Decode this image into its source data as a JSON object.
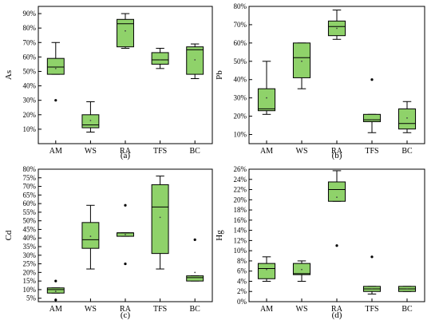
{
  "chart_data": [
    {
      "type": "box",
      "panel_label": "(a)",
      "ylabel": "As",
      "ylim": [
        0,
        95
      ],
      "yticks": [
        10,
        20,
        30,
        40,
        50,
        60,
        70,
        80,
        90
      ],
      "ytick_labels": [
        "10%",
        "20%",
        "30%",
        "40%",
        "50%",
        "60%",
        "70%",
        "80%",
        "90%"
      ],
      "categories": [
        "AM",
        "WS",
        "RA",
        "TFS",
        "BC"
      ],
      "boxes": [
        {
          "whisker_low": 48,
          "q1": 48,
          "median": 53,
          "q3": 59,
          "whisker_high": 70,
          "mean": 52,
          "outliers": [
            30
          ]
        },
        {
          "whisker_low": 8,
          "q1": 11,
          "median": 13,
          "q3": 20,
          "whisker_high": 29,
          "mean": 16,
          "outliers": []
        },
        {
          "whisker_low": 66,
          "q1": 67,
          "median": 83,
          "q3": 86,
          "whisker_high": 90,
          "mean": 78,
          "outliers": []
        },
        {
          "whisker_low": 52,
          "q1": 55,
          "median": 58,
          "q3": 63,
          "whisker_high": 66,
          "mean": 58,
          "outliers": []
        },
        {
          "whisker_low": 45,
          "q1": 48,
          "median": 65,
          "q3": 67,
          "whisker_high": 69,
          "mean": 58,
          "outliers": []
        }
      ]
    },
    {
      "type": "box",
      "panel_label": "(b)",
      "ylabel": "Pb",
      "ylim": [
        5,
        80
      ],
      "yticks": [
        10,
        20,
        30,
        40,
        50,
        60,
        70,
        80
      ],
      "ytick_labels": [
        "10%",
        "20%",
        "30%",
        "40%",
        "50%",
        "60%",
        "70%",
        "80%"
      ],
      "categories": [
        "AM",
        "WS",
        "RA",
        "TFS",
        "BC"
      ],
      "boxes": [
        {
          "whisker_low": 21,
          "q1": 23,
          "median": 24,
          "q3": 35,
          "whisker_high": 50,
          "mean": 30,
          "outliers": []
        },
        {
          "whisker_low": 35,
          "q1": 41,
          "median": 52,
          "q3": 60,
          "whisker_high": 60,
          "mean": 50,
          "outliers": []
        },
        {
          "whisker_low": 62,
          "q1": 64,
          "median": 69,
          "q3": 72,
          "whisker_high": 78,
          "mean": 68,
          "outliers": []
        },
        {
          "whisker_low": 11,
          "q1": 17,
          "median": 18,
          "q3": 21,
          "whisker_high": 21,
          "mean": 18,
          "outliers": [
            40
          ]
        },
        {
          "whisker_low": 11,
          "q1": 13,
          "median": 16,
          "q3": 24,
          "whisker_high": 28,
          "mean": 19,
          "outliers": []
        }
      ]
    },
    {
      "type": "box",
      "panel_label": "(c)",
      "ylabel": "Cd",
      "ylim": [
        3,
        80
      ],
      "yticks": [
        5,
        10,
        15,
        20,
        25,
        30,
        35,
        40,
        45,
        50,
        55,
        60,
        65,
        70,
        75,
        80
      ],
      "ytick_labels": [
        "5%",
        "10%",
        "15%",
        "20%",
        "25%",
        "30%",
        "35%",
        "40%",
        "45%",
        "50%",
        "55%",
        "60%",
        "65%",
        "70%",
        "75%",
        "80%"
      ],
      "categories": [
        "AM",
        "WS",
        "RA",
        "TFS",
        "BC"
      ],
      "boxes": [
        {
          "whisker_low": 8,
          "q1": 8,
          "median": 10,
          "q3": 11,
          "whisker_high": 11,
          "mean": 9,
          "outliers": [
            4,
            15
          ]
        },
        {
          "whisker_low": 22,
          "q1": 34,
          "median": 39,
          "q3": 49,
          "whisker_high": 59,
          "mean": 41,
          "outliers": []
        },
        {
          "whisker_low": 41,
          "q1": 41,
          "median": 43,
          "q3": 43,
          "whisker_high": 43,
          "mean": 42,
          "outliers": [
            25,
            59
          ]
        },
        {
          "whisker_low": 22,
          "q1": 31,
          "median": 58,
          "q3": 71,
          "whisker_high": 76,
          "mean": 52,
          "outliers": []
        },
        {
          "whisker_low": 15,
          "q1": 15,
          "median": 17,
          "q3": 18,
          "whisker_high": 18,
          "mean": 20,
          "outliers": [
            39
          ]
        }
      ]
    },
    {
      "type": "box",
      "panel_label": "(d)",
      "ylabel": "Hg",
      "ylim": [
        0,
        26
      ],
      "yticks": [
        0,
        2,
        4,
        6,
        8,
        10,
        12,
        14,
        16,
        18,
        20,
        22,
        24,
        26
      ],
      "ytick_labels": [
        "0%",
        "2%",
        "4%",
        "6%",
        "8%",
        "10%",
        "12%",
        "14%",
        "16%",
        "18%",
        "20%",
        "22%",
        "24%",
        "26%"
      ],
      "categories": [
        "AM",
        "WS",
        "RA",
        "TFS",
        "BC"
      ],
      "boxes": [
        {
          "whisker_low": 4,
          "q1": 4.5,
          "median": 6.5,
          "q3": 7.5,
          "whisker_high": 8.8,
          "mean": 6.3,
          "outliers": []
        },
        {
          "whisker_low": 4,
          "q1": 5.3,
          "median": 5.5,
          "q3": 7.5,
          "whisker_high": 8,
          "mean": 6.3,
          "outliers": []
        },
        {
          "whisker_low": 19.7,
          "q1": 19.7,
          "median": 22,
          "q3": 23.5,
          "whisker_high": 25.7,
          "mean": 20.5,
          "outliers": [
            11
          ]
        },
        {
          "whisker_low": 1.5,
          "q1": 2,
          "median": 2.5,
          "q3": 3,
          "whisker_high": 3,
          "mean": 2.5,
          "outliers": [
            8.8
          ]
        },
        {
          "whisker_low": 2,
          "q1": 2,
          "median": 2.5,
          "q3": 3,
          "whisker_high": 3,
          "mean": 2.5,
          "outliers": []
        }
      ]
    }
  ],
  "style": {
    "box_fill": "#8fd26a",
    "box_stroke": "#000000",
    "axis_color": "#000000"
  }
}
